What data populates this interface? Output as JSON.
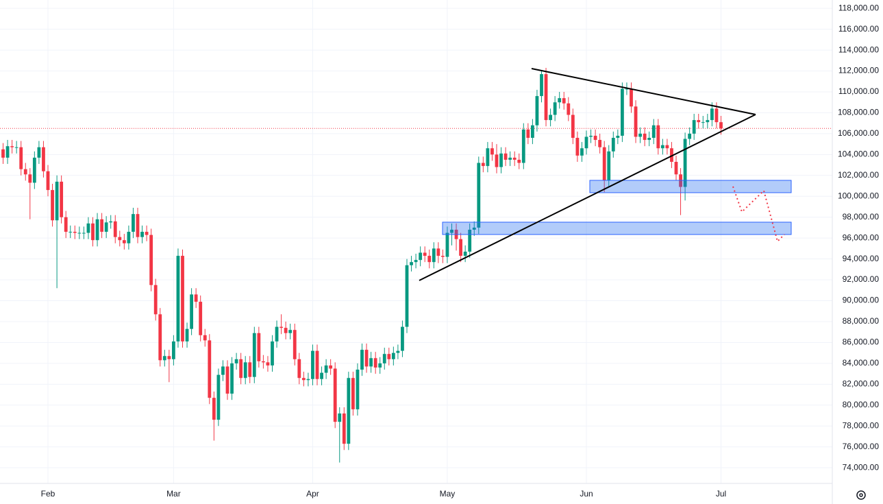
{
  "chart_data": {
    "type": "candlestick",
    "categories": [
      null,
      null,
      null,
      null,
      null,
      null,
      null,
      null,
      null,
      null,
      "Feb",
      null,
      null,
      null,
      null,
      null,
      null,
      null,
      null,
      null,
      null,
      null,
      null,
      null,
      null,
      null,
      null,
      null,
      null,
      null,
      null,
      null,
      null,
      null,
      null,
      null,
      null,
      null,
      "Mar",
      null,
      null,
      null,
      null,
      null,
      null,
      null,
      null,
      null,
      null,
      null,
      null,
      null,
      null,
      null,
      null,
      null,
      null,
      null,
      null,
      null,
      null,
      null,
      null,
      null,
      null,
      null,
      null,
      null,
      null,
      "Apr",
      null,
      null,
      null,
      null,
      null,
      null,
      null,
      null,
      null,
      null,
      null,
      null,
      null,
      null,
      null,
      null,
      null,
      null,
      null,
      null,
      null,
      null,
      null,
      null,
      null,
      null,
      null,
      null,
      null,
      "May",
      null,
      null,
      null,
      null,
      null,
      null,
      null,
      null,
      null,
      null,
      null,
      null,
      null,
      null,
      null,
      null,
      null,
      null,
      null,
      null,
      null,
      null,
      null,
      null,
      null,
      null,
      null,
      null,
      null,
      null,
      "Jun",
      null,
      null,
      null,
      null,
      null,
      null,
      null,
      null,
      null,
      null,
      null,
      null,
      null,
      null,
      null,
      null,
      null,
      null,
      null,
      null,
      null,
      null,
      null,
      null,
      null,
      null,
      null,
      null,
      null,
      "Jul"
    ],
    "open": [
      104500,
      103700,
      104800,
      104700,
      104700,
      102600,
      102100,
      101300,
      103700,
      104700,
      102400,
      100600,
      97700,
      101400,
      98000,
      96600,
      96600,
      96500,
      96500,
      96500,
      97400,
      95800,
      97800,
      96600,
      97500,
      97600,
      96100,
      95800,
      95500,
      96600,
      98300,
      96100,
      96600,
      96300,
      91500,
      88700,
      84300,
      84700,
      84400,
      86100,
      94300,
      86100,
      87300,
      90600,
      89900,
      86700,
      86200,
      80700,
      78600,
      82900,
      83700,
      81100,
      84000,
      84400,
      82600,
      84100,
      82700,
      86900,
      84200,
      84100,
      83800,
      86100,
      87500,
      87400,
      86900,
      87200,
      84400,
      82600,
      82400,
      82500,
      85200,
      82500,
      83100,
      83800,
      83500,
      78400,
      79200,
      76300,
      82600,
      79600,
      83400,
      85300,
      83700,
      84500,
      83600,
      84000,
      84900,
      84400,
      85000,
      85200,
      87500,
      93400,
      93700,
      93900,
      94600,
      94300,
      93700,
      95000,
      94300,
      94200,
      96500,
      96800,
      95900,
      94300,
      94700,
      96800,
      97000,
      103200,
      102900,
      104600,
      104000,
      102800,
      104100,
      103500,
      103700,
      103500,
      103200,
      106400,
      105600,
      106800,
      109600,
      111700,
      107300,
      107800,
      109000,
      109400,
      108900,
      107800,
      105600,
      103900,
      104600,
      105700,
      105800,
      105400,
      104700,
      101500,
      104300,
      105600,
      105800,
      110300,
      110300,
      108600,
      105700,
      106000,
      105400,
      105600,
      106800,
      104600,
      104900,
      104600,
      103300,
      102100,
      100900,
      105500,
      106000,
      107300,
      107100,
      107100,
      107300,
      108400,
      107100
    ],
    "high": [
      105100,
      105400,
      105400,
      105300,
      105300,
      103200,
      102700,
      104300,
      105300,
      105300,
      103000,
      101200,
      102000,
      102000,
      98600,
      97200,
      97200,
      97100,
      97100,
      98000,
      98000,
      98400,
      98400,
      98100,
      98200,
      98200,
      96700,
      96400,
      97200,
      98900,
      98900,
      97200,
      97200,
      96900,
      92100,
      89300,
      85300,
      85300,
      86700,
      95000,
      94900,
      87900,
      91200,
      91200,
      90500,
      87300,
      86800,
      81300,
      83500,
      84300,
      84300,
      84600,
      85000,
      85000,
      84700,
      84700,
      87500,
      87500,
      84800,
      84700,
      86700,
      88100,
      88700,
      88000,
      87800,
      87800,
      85000,
      83200,
      83100,
      85800,
      85800,
      83700,
      84400,
      84400,
      84100,
      79800,
      79800,
      83200,
      83200,
      84000,
      85900,
      85900,
      85100,
      85100,
      84600,
      85500,
      85500,
      85600,
      85800,
      88100,
      94000,
      94300,
      94500,
      95200,
      95200,
      94900,
      95600,
      95600,
      94900,
      97100,
      97400,
      97400,
      96500,
      95300,
      97400,
      97600,
      103800,
      103800,
      105200,
      105200,
      105000,
      104700,
      104700,
      104300,
      104300,
      104100,
      107000,
      107000,
      107400,
      110200,
      112000,
      112300,
      108400,
      109600,
      110000,
      110000,
      109500,
      108400,
      106200,
      105200,
      106300,
      106400,
      106400,
      106000,
      105300,
      104900,
      106200,
      106400,
      110900,
      110900,
      110900,
      109200,
      106600,
      106600,
      106200,
      107400,
      107400,
      105500,
      105500,
      105200,
      103900,
      102700,
      106100,
      106600,
      107900,
      107900,
      107700,
      107900,
      109000,
      109000,
      107700
    ],
    "low": [
      103100,
      103100,
      104100,
      104100,
      102000,
      101500,
      97800,
      100700,
      103100,
      101800,
      100000,
      97100,
      91200,
      97400,
      96000,
      96000,
      95900,
      95900,
      95900,
      95900,
      95200,
      95200,
      96000,
      96000,
      96900,
      95500,
      95200,
      94900,
      94900,
      96000,
      95500,
      95500,
      95700,
      90900,
      88100,
      83700,
      83700,
      82200,
      83800,
      85500,
      85500,
      85500,
      86700,
      89300,
      86100,
      85600,
      80100,
      76600,
      78000,
      82300,
      80500,
      80500,
      83400,
      82000,
      82000,
      82100,
      82100,
      83600,
      83500,
      83200,
      83200,
      85500,
      86800,
      86300,
      86300,
      83800,
      82000,
      81800,
      81800,
      81900,
      81900,
      81900,
      82500,
      82900,
      77800,
      74500,
      75700,
      75700,
      79000,
      79000,
      82800,
      83100,
      83100,
      83000,
      83000,
      83400,
      83800,
      83800,
      84400,
      84600,
      86900,
      92800,
      93100,
      93300,
      93700,
      93100,
      93100,
      93600,
      93600,
      93600,
      95300,
      94800,
      93700,
      93700,
      94100,
      96200,
      96400,
      102300,
      102300,
      103400,
      102200,
      102200,
      102900,
      102900,
      102900,
      102600,
      102600,
      105000,
      105000,
      106200,
      109000,
      106700,
      106700,
      107200,
      108400,
      108300,
      107200,
      105000,
      103300,
      103300,
      104000,
      105100,
      104800,
      104100,
      100400,
      100900,
      103700,
      105000,
      105200,
      109700,
      108000,
      105100,
      105100,
      104800,
      104800,
      105000,
      104000,
      104000,
      104000,
      102700,
      101500,
      98200,
      99600,
      104900,
      105400,
      106500,
      106500,
      106500,
      106700,
      106500,
      105900
    ],
    "close": [
      103700,
      104800,
      104700,
      104700,
      102600,
      102100,
      101300,
      103700,
      104700,
      102400,
      100600,
      97700,
      101400,
      98000,
      96600,
      96600,
      96500,
      96500,
      96500,
      97400,
      95800,
      97800,
      96600,
      97500,
      97600,
      96100,
      95800,
      95500,
      96600,
      98300,
      96100,
      96600,
      96300,
      91500,
      88700,
      84300,
      84700,
      84400,
      86100,
      94300,
      86100,
      87300,
      90600,
      89900,
      86700,
      86200,
      80700,
      78600,
      82900,
      83700,
      81100,
      84000,
      84400,
      82600,
      84100,
      82700,
      86900,
      84200,
      84100,
      83800,
      86100,
      87500,
      87400,
      86900,
      87200,
      84400,
      82600,
      82400,
      82500,
      85200,
      82500,
      83100,
      83800,
      83500,
      78400,
      79200,
      76300,
      82600,
      79600,
      83400,
      85300,
      83700,
      84500,
      83600,
      84000,
      84900,
      84400,
      85000,
      85200,
      87500,
      93400,
      93700,
      93900,
      94600,
      94300,
      93700,
      95000,
      94300,
      94200,
      96500,
      96800,
      95900,
      94300,
      94700,
      96800,
      97000,
      103200,
      102900,
      104600,
      104000,
      102800,
      104100,
      103500,
      103700,
      103500,
      103200,
      106400,
      105600,
      106800,
      109600,
      111700,
      107300,
      107800,
      109000,
      109400,
      108900,
      107800,
      105600,
      103900,
      104600,
      105700,
      105800,
      105400,
      104700,
      101500,
      104300,
      105600,
      105800,
      110300,
      110300,
      108600,
      105700,
      106000,
      105400,
      105600,
      106800,
      104600,
      104900,
      104600,
      103300,
      102100,
      100900,
      105500,
      106000,
      107300,
      107100,
      107100,
      107300,
      108400,
      107100,
      106500
    ],
    "up_color": "#089981",
    "down_color": "#f23645",
    "ylim": [
      72500,
      118800
    ],
    "yticks": [
      {
        "value": 74000,
        "label": "74,000.00"
      },
      {
        "value": 76000,
        "label": "76,000.00"
      },
      {
        "value": 78000,
        "label": "78,000.00"
      },
      {
        "value": 80000,
        "label": "80,000.00"
      },
      {
        "value": 82000,
        "label": "82,000.00"
      },
      {
        "value": 84000,
        "label": "84,000.00"
      },
      {
        "value": 86000,
        "label": "86,000.00"
      },
      {
        "value": 88000,
        "label": "88,000.00"
      },
      {
        "value": 90000,
        "label": "90,000.00"
      },
      {
        "value": 92000,
        "label": "92,000.00"
      },
      {
        "value": 94000,
        "label": "94,000.00"
      },
      {
        "value": 96000,
        "label": "96,000.00"
      },
      {
        "value": 98000,
        "label": "98,000.00"
      },
      {
        "value": 100000,
        "label": "100,000.00"
      },
      {
        "value": 102000,
        "label": "102,000.00"
      },
      {
        "value": 104000,
        "label": "104,000.00"
      },
      {
        "value": 106000,
        "label": "106,000.00"
      },
      {
        "value": 108000,
        "label": "108,000.00"
      },
      {
        "value": 110000,
        "label": "110,000.00"
      },
      {
        "value": 112000,
        "label": "112,000.00"
      },
      {
        "value": 114000,
        "label": "114,000.00"
      },
      {
        "value": 116000,
        "label": "116,000.00"
      },
      {
        "value": 118000,
        "label": "118,000.00"
      }
    ],
    "grid": true
  }
}
